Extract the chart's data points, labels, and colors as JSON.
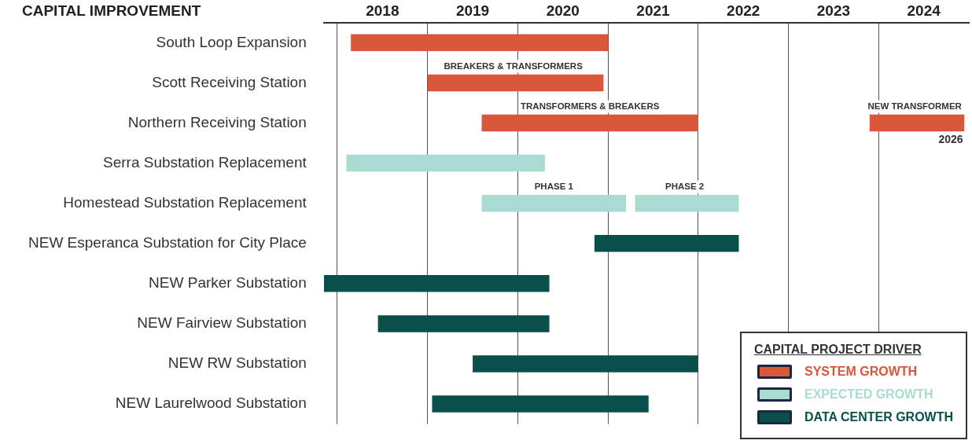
{
  "chart_data": {
    "type": "bar",
    "orientation": "horizontal",
    "ylabel": "CAPITAL IMPROVEMENT",
    "legend_title": "CAPITAL PROJECT DRIVER",
    "categories": [
      "South Loop Expansion",
      "Scott Receiving Station",
      "Northern Receiving Station",
      "Serra Substation Replacement",
      "Homestead Substation Replacement",
      "NEW Esperanca Substation for City Place",
      "NEW Parker Substation",
      "NEW Fairview Substation",
      "NEW RW Substation",
      "NEW Laurelwood Substation"
    ],
    "series": [
      {
        "name": "SYSTEM GROWTH",
        "color": "#d9573a",
        "base": [
          2018.15,
          2019.0,
          2019.6,
          null,
          null,
          null,
          null,
          null,
          null,
          null
        ],
        "values": [
          2.85,
          1.95,
          2.4,
          null,
          null,
          null,
          null,
          null,
          null,
          null
        ]
      },
      {
        "color": "#d9573a",
        "base": [
          null,
          null,
          2023.9,
          null,
          null,
          null,
          null,
          null,
          null,
          null
        ],
        "values": [
          null,
          null,
          1.05,
          null,
          null,
          null,
          null,
          null,
          null,
          null
        ]
      },
      {
        "name": "EXPECTED GROWTH",
        "color": "#a9dbd2",
        "base": [
          null,
          null,
          null,
          2018.1,
          2019.6,
          null,
          null,
          null,
          null,
          null
        ],
        "values": [
          null,
          null,
          null,
          2.2,
          1.6,
          null,
          null,
          null,
          null,
          null
        ]
      },
      {
        "color": "#a9dbd2",
        "base": [
          null,
          null,
          null,
          null,
          2021.3,
          null,
          null,
          null,
          null,
          null
        ],
        "values": [
          null,
          null,
          null,
          null,
          1.15,
          null,
          null,
          null,
          null,
          null
        ]
      },
      {
        "name": "DATA CENTER GROWTH",
        "color": "#0b4f4a",
        "base": [
          null,
          null,
          null,
          null,
          null,
          2020.85,
          2017.85,
          2018.45,
          2019.5,
          2019.05
        ],
        "values": [
          null,
          null,
          null,
          null,
          null,
          1.6,
          2.5,
          1.9,
          2.5,
          2.4
        ]
      }
    ],
    "xlim": [
      2017.85,
      2025
    ],
    "xticks": [
      {
        "value": 2018,
        "label": null
      },
      {
        "value": 2018.5,
        "label": "2018"
      },
      {
        "value": 2019,
        "label": null
      },
      {
        "value": 2019.5,
        "label": "2019"
      },
      {
        "value": 2020,
        "label": null
      },
      {
        "value": 2020.5,
        "label": "2020"
      },
      {
        "value": 2021,
        "label": null
      },
      {
        "value": 2021.5,
        "label": "2021"
      },
      {
        "value": 2022,
        "label": null
      },
      {
        "value": 2022.5,
        "label": "2022"
      },
      {
        "value": 2023,
        "label": null
      },
      {
        "value": 2023.5,
        "label": "2023"
      },
      {
        "value": 2024,
        "label": null
      },
      {
        "value": 2024.5,
        "label": "2024"
      }
    ],
    "grid": "x",
    "legend": "bottom right",
    "annotations": [
      "BREAKERS & TRANSFORMERS",
      "TRANSFORMERS & BREAKERS",
      "NEW TRANSFORMER",
      "2026",
      "PHASE 1",
      "PHASE 2"
    ]
  }
}
